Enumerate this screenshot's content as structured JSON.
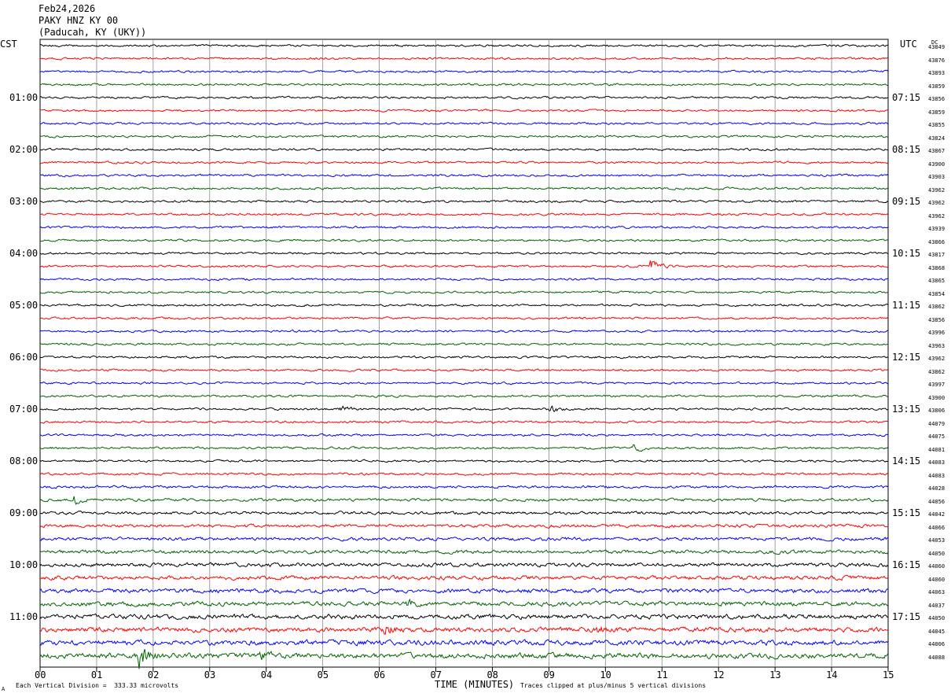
{
  "header": {
    "date": "Feb24,2026",
    "station": "PAKY HNZ KY 00",
    "location": "(Paducah, KY (UKY))"
  },
  "left_tz": "CST",
  "right_tz": "UTC",
  "dc_label": "DC",
  "footer": {
    "scale_note": "Each Vertical Division =  333.33 microvolts",
    "clip_note": "Traces clipped at plus/minus 5 vertical divisions",
    "mark": "A"
  },
  "colors": {
    "trace_cycle": [
      "#000000",
      "#ff0000",
      "#0000ff",
      "#006400"
    ],
    "grid": "#888888"
  },
  "chart_data": {
    "type": "line",
    "title": "",
    "xlabel": "TIME (MINUTES)",
    "xlim": [
      0,
      15
    ],
    "x_ticks": [
      "00",
      "01",
      "02",
      "03",
      "04",
      "05",
      "06",
      "07",
      "08",
      "09",
      "10",
      "11",
      "12",
      "13",
      "14",
      "15"
    ],
    "traces_per_hour": 4,
    "hour_labels_cst": [
      "01:00",
      "02:00",
      "03:00",
      "04:00",
      "05:00",
      "06:00",
      "07:00",
      "08:00",
      "09:00",
      "10:00",
      "11:00"
    ],
    "hour_labels_utc": [
      "07:15",
      "08:15",
      "09:15",
      "10:15",
      "11:15",
      "12:15",
      "13:15",
      "14:15",
      "15:15",
      "16:15",
      "17:15"
    ],
    "dc_offsets": [
      "43849",
      "43876",
      "43893",
      "43859",
      "43856",
      "43859",
      "43855",
      "43824",
      "43867",
      "43900",
      "43903",
      "43962",
      "43962",
      "43962",
      "43939",
      "43866",
      "43817",
      "43868",
      "43865",
      "43854",
      "43862",
      "43856",
      "43996",
      "43963",
      "43962",
      "43862",
      "43997",
      "43900",
      "43806",
      "44079",
      "44075",
      "44081",
      "44083",
      "44083",
      "44028",
      "44056",
      "44042",
      "44066",
      "44053",
      "44050",
      "44060",
      "44060",
      "44063",
      "44037",
      "44050",
      "44045",
      "44006",
      "44088"
    ],
    "events": [
      {
        "trace": 17,
        "minute": 10.8,
        "amplitude": 2.2
      },
      {
        "trace": 28,
        "minute": 5.3,
        "amplitude": 1.3
      },
      {
        "trace": 28,
        "minute": 9.0,
        "amplitude": 1.3
      },
      {
        "trace": 31,
        "minute": 10.5,
        "amplitude": 1.3
      },
      {
        "trace": 35,
        "minute": 0.6,
        "amplitude": 1.3
      },
      {
        "trace": 43,
        "minute": 6.5,
        "amplitude": 1.2
      },
      {
        "trace": 45,
        "minute": 6.1,
        "amplitude": 1.5
      },
      {
        "trace": 45,
        "minute": 9.8,
        "amplitude": 1.4
      },
      {
        "trace": 47,
        "minute": 1.75,
        "amplitude": 4.8
      },
      {
        "trace": 47,
        "minute": 3.9,
        "amplitude": 1.4
      }
    ]
  }
}
